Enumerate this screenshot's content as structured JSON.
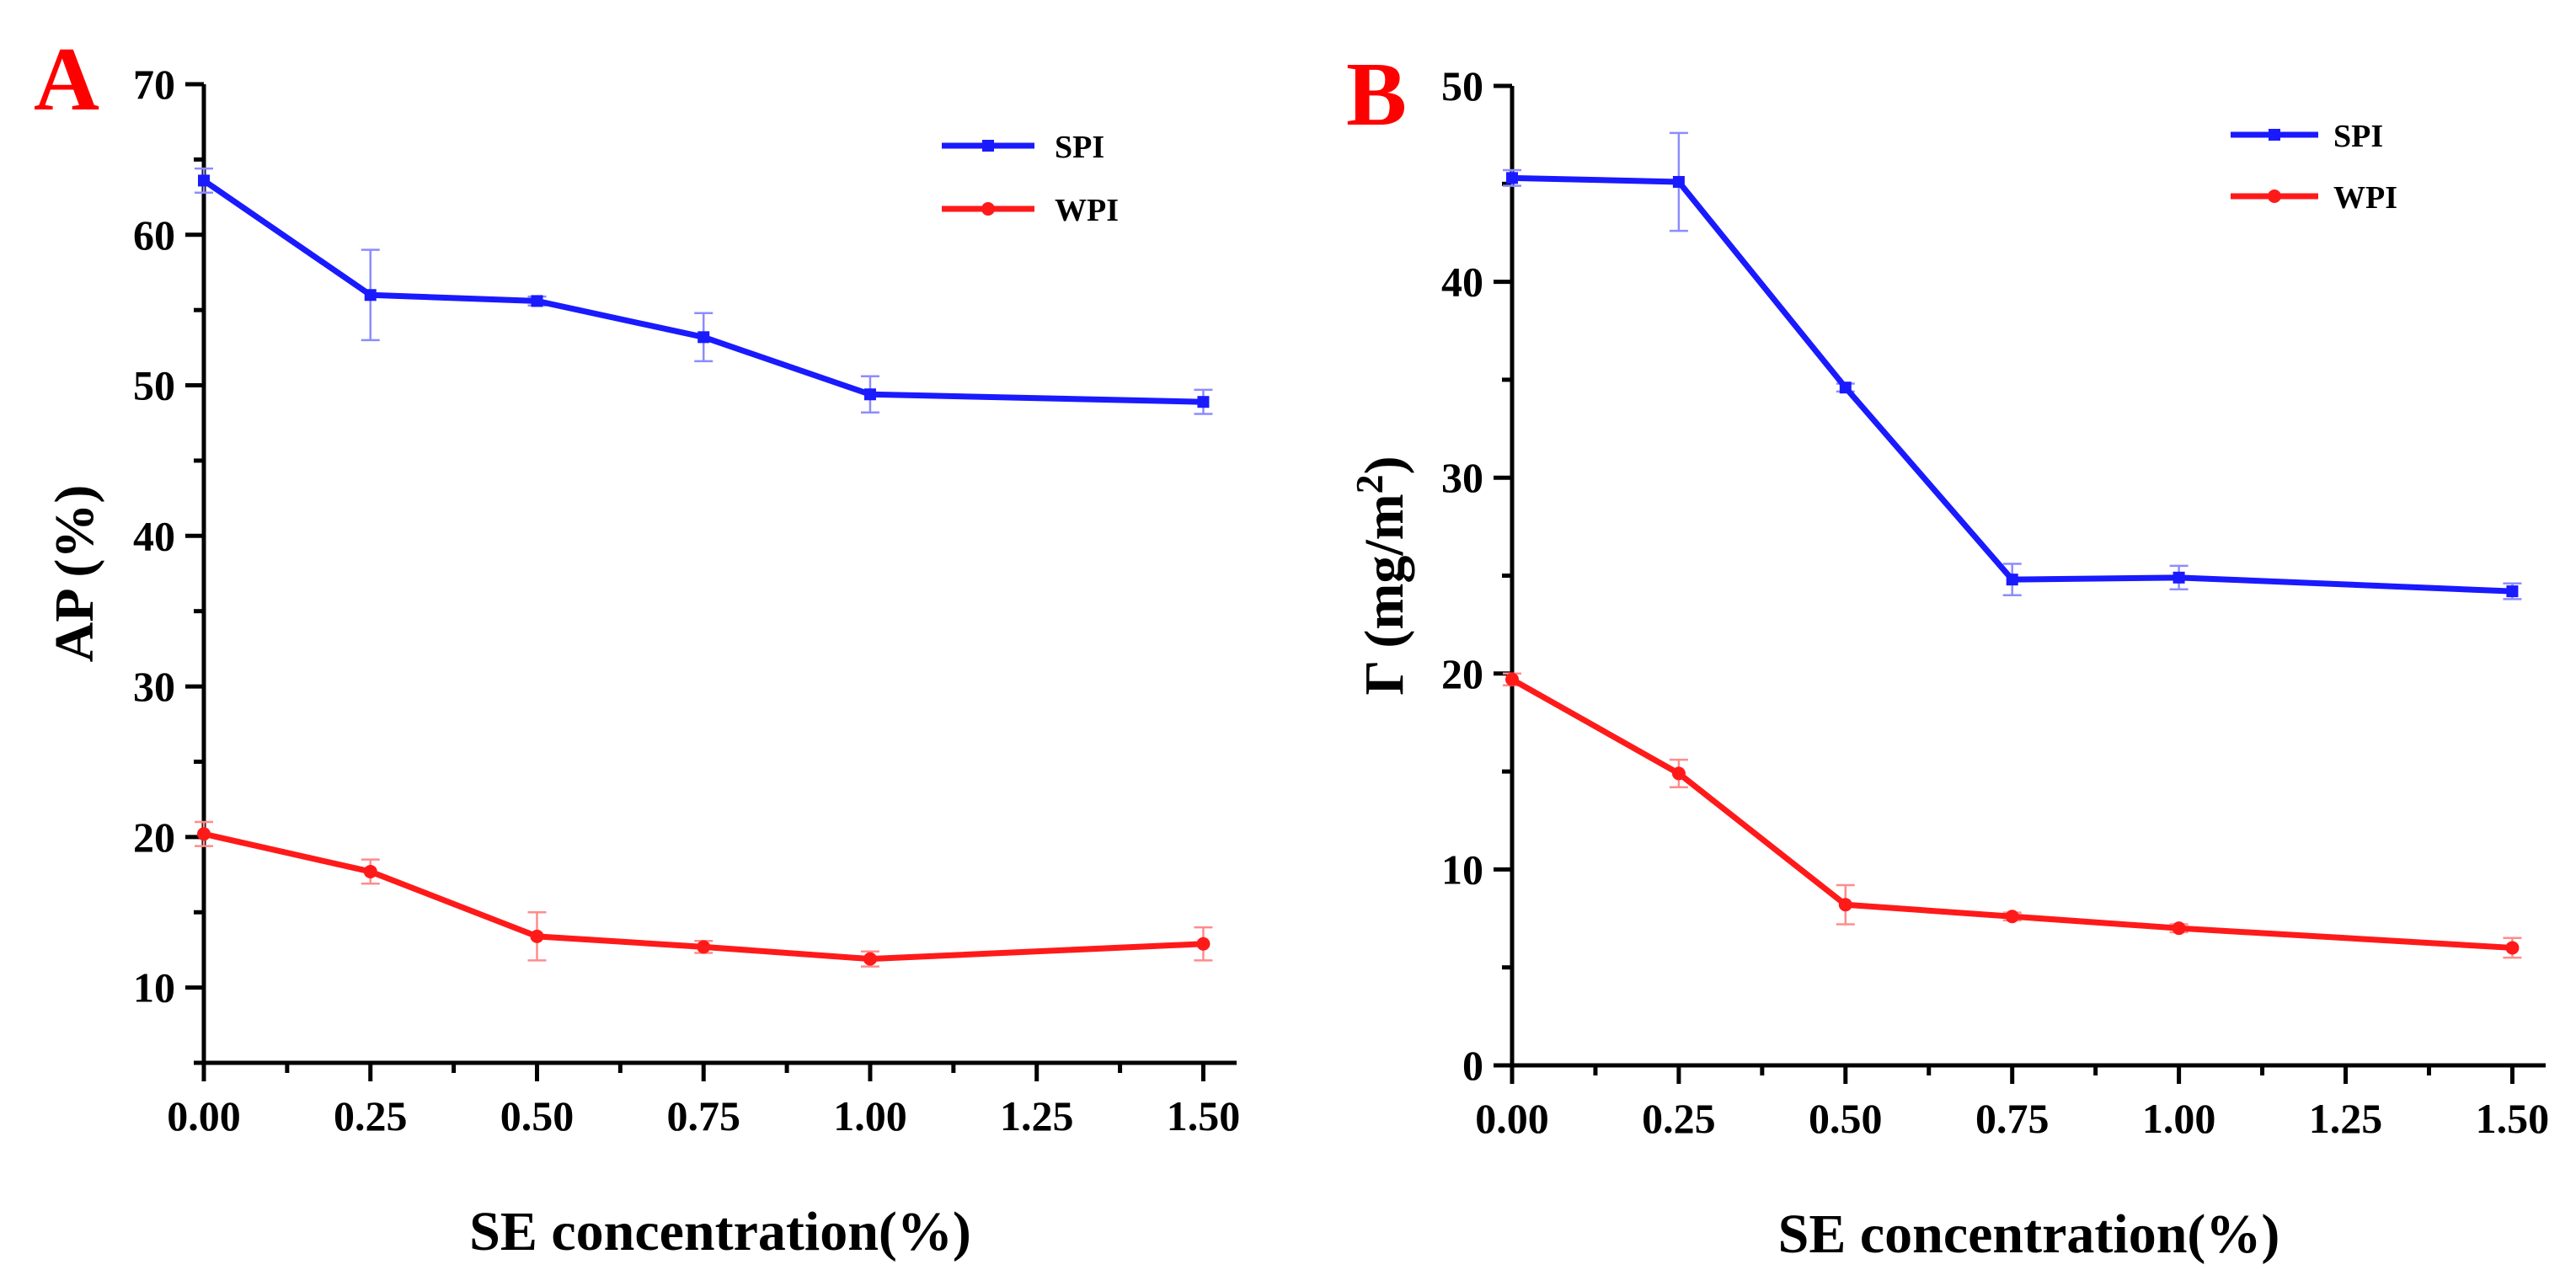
{
  "colors": {
    "SPI": "#1a1aff",
    "WPI": "#ff1a1a",
    "SPI_err": "#8c8cff",
    "WPI_err": "#ff8c8c",
    "letter": "#ff0000",
    "axis": "#000000"
  },
  "chart_data": [
    {
      "type": "line",
      "panel": "A",
      "xlabel": "SE concentration(%)",
      "ylabel": "AP (%)",
      "xlim": [
        0,
        1.55
      ],
      "ylim": [
        5,
        70
      ],
      "x_ticks": [
        0,
        0.25,
        0.5,
        0.75,
        1.0,
        1.25,
        1.5
      ],
      "x_tick_labels": [
        "0.00",
        "0.25",
        "0.50",
        "0.75",
        "1.00",
        "1.25",
        "1.50"
      ],
      "y_ticks": [
        10,
        20,
        30,
        40,
        50,
        60,
        70
      ],
      "y_tick_labels": [
        "10",
        "20",
        "30",
        "40",
        "50",
        "60",
        "70"
      ],
      "legend_position": "top-right",
      "series": [
        {
          "name": "SPI",
          "marker": "square",
          "x": [
            0,
            0.25,
            0.5,
            0.75,
            1.0,
            1.5
          ],
          "values": [
            63.6,
            56.0,
            55.6,
            53.2,
            49.4,
            48.9
          ],
          "errors": [
            0.8,
            3.0,
            0.3,
            1.6,
            1.2,
            0.8
          ]
        },
        {
          "name": "WPI",
          "marker": "circle",
          "x": [
            0,
            0.25,
            0.5,
            0.75,
            1.0,
            1.5
          ],
          "values": [
            20.2,
            17.7,
            13.4,
            12.7,
            11.9,
            12.9
          ],
          "errors": [
            0.8,
            0.8,
            1.6,
            0.4,
            0.5,
            1.1
          ]
        }
      ]
    },
    {
      "type": "line",
      "panel": "B",
      "xlabel": "SE concentration(%)",
      "ylabel": "Γ (mg/m",
      "ylabel_superscript": "2",
      "ylabel_suffix": ")",
      "xlim": [
        0,
        1.55
      ],
      "ylim": [
        0,
        50
      ],
      "x_ticks": [
        0,
        0.25,
        0.5,
        0.75,
        1.0,
        1.25,
        1.5
      ],
      "x_tick_labels": [
        "0.00",
        "0.25",
        "0.50",
        "0.75",
        "1.00",
        "1.25",
        "1.50"
      ],
      "y_ticks": [
        0,
        10,
        20,
        30,
        40,
        50
      ],
      "y_tick_labels": [
        "0",
        "10",
        "20",
        "30",
        "40",
        "50"
      ],
      "legend_position": "top-right",
      "series": [
        {
          "name": "SPI",
          "marker": "square",
          "x": [
            0,
            0.25,
            0.5,
            0.75,
            1.0,
            1.5
          ],
          "values": [
            45.3,
            45.1,
            34.6,
            24.8,
            24.9,
            24.2
          ],
          "errors": [
            0.4,
            2.5,
            0.2,
            0.8,
            0.6,
            0.4
          ]
        },
        {
          "name": "WPI",
          "marker": "circle",
          "x": [
            0,
            0.25,
            0.5,
            0.75,
            1.0,
            1.5
          ],
          "values": [
            19.7,
            14.9,
            8.2,
            7.6,
            7.0,
            6.0
          ],
          "errors": [
            0.3,
            0.7,
            1.0,
            0.2,
            0.2,
            0.5
          ]
        }
      ]
    }
  ]
}
